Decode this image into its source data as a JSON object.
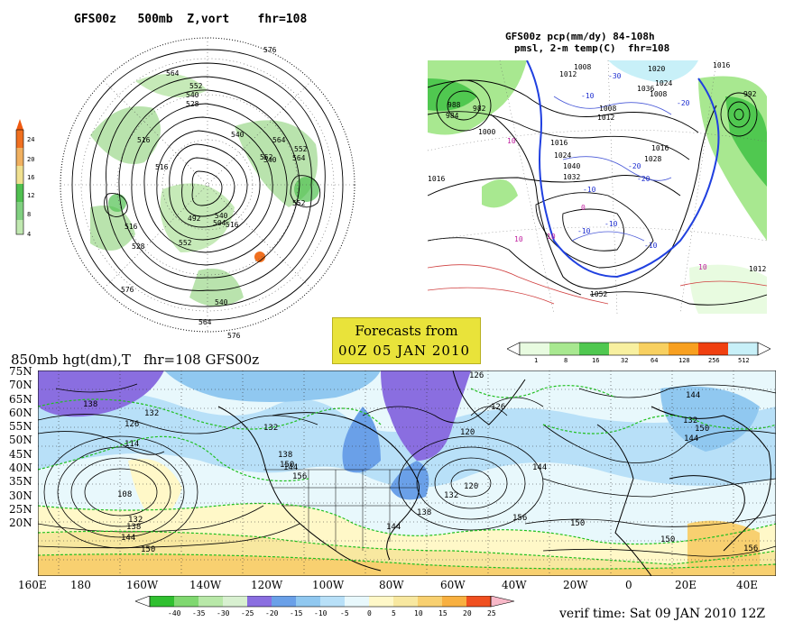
{
  "polar_panel": {
    "title": "GFS00z   500mb  Z,vort    fhr=108",
    "height_labels": [
      "576",
      "564",
      "552",
      "540",
      "528",
      "516",
      "516",
      "540",
      "552",
      "564",
      "552",
      "516",
      "564",
      "540",
      "552",
      "516",
      "492",
      "504",
      "528",
      "540",
      "552",
      "564",
      "576",
      "576",
      "540"
    ],
    "vort_scale": {
      "values": [
        "24",
        "20",
        "16",
        "12",
        "8",
        "4"
      ],
      "colors": [
        "#f07020",
        "#f0b060",
        "#f0e090",
        "#50c050",
        "#80d080",
        "#c0e8b0"
      ]
    }
  },
  "precip_panel": {
    "title_line1": "GFS00z pcp(mm/dy) 84-108h",
    "title_line2": "pmsl, 2-m temp(C)  fhr=108",
    "pressure_labels": [
      "988",
      "984",
      "982",
      "1000",
      "1012",
      "1008",
      "1016",
      "1016",
      "1024",
      "1028",
      "1032",
      "1040",
      "1036",
      "1024",
      "1020",
      "1012",
      "1008",
      "1052",
      "992",
      "1012",
      "1016",
      "1008",
      "1016"
    ],
    "temp_labels": [
      "-10",
      "-20",
      "-10",
      "-10",
      "-20",
      "-30",
      "-20",
      "-10",
      "10",
      "10",
      "0",
      "-10",
      "10",
      "10"
    ],
    "scale": {
      "values": [
        "1",
        "8",
        "16",
        "32",
        "64",
        "128",
        "256",
        "512"
      ],
      "colors": [
        "#e8fbe0",
        "#a8e890",
        "#50c850",
        "#f8f0a0",
        "#f8d060",
        "#f8a020",
        "#f04010",
        "#c8f0f8"
      ]
    }
  },
  "forecast_box": {
    "line1": "Forecasts from",
    "line2": "00Z 05 JAN 2010"
  },
  "main_panel": {
    "title": "850mb hgt(dm),T   fhr=108 GFS00z",
    "lat_labels": [
      "75N",
      "70N",
      "65N",
      "60N",
      "55N",
      "50N",
      "45N",
      "40N",
      "35N",
      "30N",
      "25N",
      "20N"
    ],
    "lon_labels": [
      "160E",
      "180",
      "160W",
      "140W",
      "120W",
      "100W",
      "80W",
      "60W",
      "40W",
      "20W",
      "0",
      "20E",
      "40E"
    ],
    "height_labels": [
      "126",
      "138",
      "132",
      "126",
      "114",
      "108",
      "132",
      "138",
      "144",
      "150",
      "132",
      "138",
      "144",
      "150",
      "156",
      "120",
      "126",
      "132",
      "120",
      "144",
      "156",
      "150",
      "144",
      "138",
      "144",
      "150",
      "150",
      "156",
      "144",
      "132"
    ],
    "temp_scale": {
      "values": [
        "-40",
        "-35",
        "-30",
        "-25",
        "-20",
        "-15",
        "-10",
        "-5",
        "0",
        "5",
        "10",
        "15",
        "20",
        "25"
      ],
      "colors": [
        "#30c030",
        "#80d870",
        "#b8e8a8",
        "#d8f0d0",
        "#8a6ee0",
        "#6aa0e8",
        "#90c8f0",
        "#b8e0f8",
        "#e8f8fc",
        "#fff8c8",
        "#f8e8a0",
        "#f8d070",
        "#f8b040",
        "#f05020",
        "#f8b8c8"
      ]
    }
  },
  "verif_time": "verif time: Sat 09 JAN 2010 12Z"
}
